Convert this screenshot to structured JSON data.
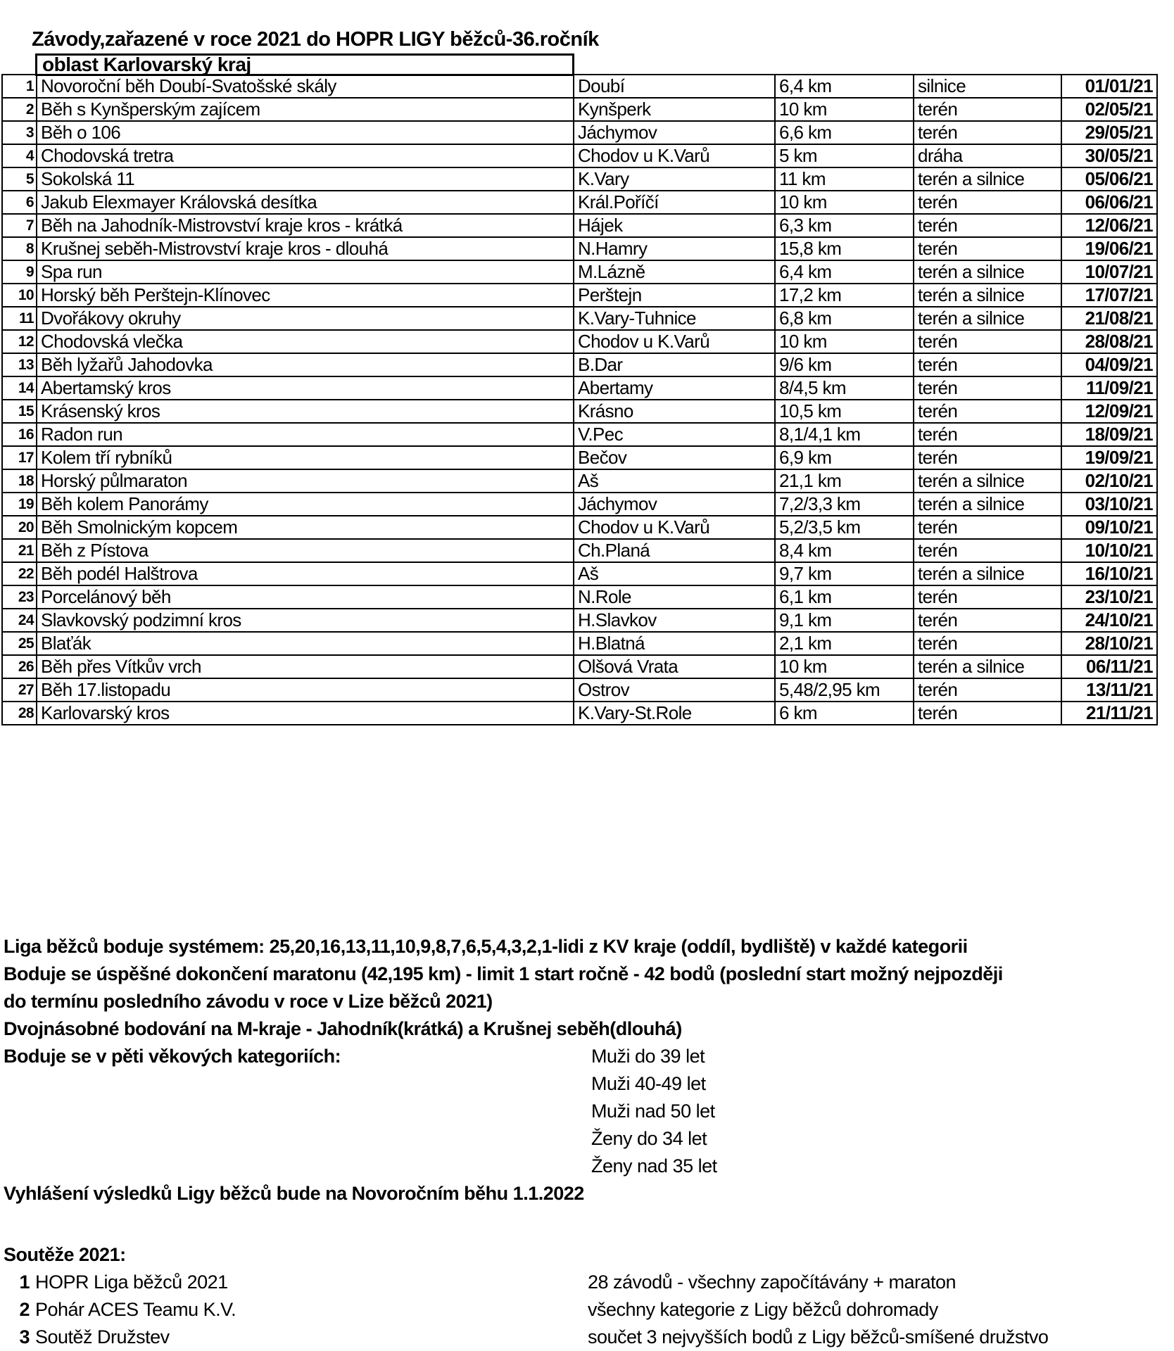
{
  "page": {
    "title": "Závody,zařazené v roce 2021 do HOPR LIGY běžců-36.ročník",
    "region_label": "oblast Karlovarský kraj"
  },
  "colors": {
    "text": "#000000",
    "background": "#ffffff",
    "border": "#000000"
  },
  "table": {
    "rows": [
      {
        "num": "1",
        "name": "Novoroční běh Doubí-Svatošské skály",
        "place": "Doubí",
        "distance": "6,4 km",
        "surface": "silnice",
        "date": "01/01/21"
      },
      {
        "num": "2",
        "name": "Běh s Kynšperským zajícem",
        "place": "Kynšperk",
        "distance": "10 km",
        "surface": "terén",
        "date": "02/05/21"
      },
      {
        "num": "3",
        "name": "Běh o 106",
        "place": "Jáchymov",
        "distance": "6,6 km",
        "surface": "terén",
        "date": "29/05/21"
      },
      {
        "num": "4",
        "name": "Chodovská tretra",
        "place": "Chodov u K.Varů",
        "distance": "5 km",
        "surface": "dráha",
        "date": "30/05/21"
      },
      {
        "num": "5",
        "name": "Sokolská 11",
        "place": "K.Vary",
        "distance": "11 km",
        "surface": "terén a silnice",
        "date": "05/06/21"
      },
      {
        "num": "6",
        "name": "Jakub Elexmayer Královská desítka",
        "place": "Král.Poříčí",
        "distance": "10 km",
        "surface": "terén",
        "date": "06/06/21"
      },
      {
        "num": "7",
        "name": "Běh na Jahodník-Mistrovství kraje kros - krátká",
        "place": "Hájek",
        "distance": "6,3 km",
        "surface": "terén",
        "date": "12/06/21"
      },
      {
        "num": "8",
        "name": "Krušnej seběh-Mistrovství kraje kros - dlouhá",
        "place": "N.Hamry",
        "distance": "15,8 km",
        "surface": "terén",
        "date": "19/06/21"
      },
      {
        "num": "9",
        "name": "Spa run",
        "place": "M.Lázně",
        "distance": "6,4 km",
        "surface": "terén a silnice",
        "date": "10/07/21"
      },
      {
        "num": "10",
        "name": "Horský běh Perštejn-Klínovec",
        "place": "Perštejn",
        "distance": "17,2 km",
        "surface": "terén a silnice",
        "date": "17/07/21"
      },
      {
        "num": "11",
        "name": "Dvořákovy okruhy",
        "place": "K.Vary-Tuhnice",
        "distance": "6,8 km",
        "surface": "terén a silnice",
        "date": "21/08/21"
      },
      {
        "num": "12",
        "name": "Chodovská vlečka",
        "place": "Chodov u K.Varů",
        "distance": "10 km",
        "surface": "terén",
        "date": "28/08/21"
      },
      {
        "num": "13",
        "name": "Běh lyžařů Jahodovka",
        "place": "B.Dar",
        "distance": "9/6 km",
        "surface": "terén",
        "date": "04/09/21"
      },
      {
        "num": "14",
        "name": "Abertamský kros",
        "place": "Abertamy",
        "distance": "8/4,5 km",
        "surface": "terén",
        "date": "11/09/21"
      },
      {
        "num": "15",
        "name": "Krásenský kros",
        "place": "Krásno",
        "distance": "10,5 km",
        "surface": "terén",
        "date": "12/09/21"
      },
      {
        "num": "16",
        "name": "Radon run",
        "place": "V.Pec",
        "distance": "8,1/4,1 km",
        "surface": "terén",
        "date": "18/09/21"
      },
      {
        "num": "17",
        "name": "Kolem tří rybníků",
        "place": "Bečov",
        "distance": "6,9 km",
        "surface": "terén",
        "date": "19/09/21"
      },
      {
        "num": "18",
        "name": "Horský půlmaraton",
        "place": "Aš",
        "distance": "21,1 km",
        "surface": "terén a silnice",
        "date": "02/10/21"
      },
      {
        "num": "19",
        "name": "Běh kolem Panorámy",
        "place": "Jáchymov",
        "distance": "7,2/3,3 km",
        "surface": "terén a silnice",
        "date": "03/10/21"
      },
      {
        "num": "20",
        "name": "Běh Smolnickým kopcem",
        "place": "Chodov u K.Varů",
        "distance": "5,2/3,5 km",
        "surface": "terén",
        "date": "09/10/21"
      },
      {
        "num": "21",
        "name": "Běh z Pístova",
        "place": "Ch.Planá",
        "distance": "8,4 km",
        "surface": "terén",
        "date": "10/10/21"
      },
      {
        "num": "22",
        "name": "Běh podél Halštrova",
        "place": "Aš",
        "distance": "9,7 km",
        "surface": "terén a silnice",
        "date": "16/10/21"
      },
      {
        "num": "23",
        "name": "Porcelánový běh",
        "place": "N.Role",
        "distance": "6,1 km",
        "surface": "terén",
        "date": "23/10/21"
      },
      {
        "num": "24",
        "name": "Slavkovský podzimní kros",
        "place": "H.Slavkov",
        "distance": "9,1 km",
        "surface": "terén",
        "date": "24/10/21"
      },
      {
        "num": "25",
        "name": "Blaťák",
        "place": "H.Blatná",
        "distance": "2,1 km",
        "surface": "terén",
        "date": "28/10/21"
      },
      {
        "num": "26",
        "name": "Běh přes Vítkův vrch",
        "place": "Olšová Vrata",
        "distance": "10 km",
        "surface": "terén a silnice",
        "date": "06/11/21"
      },
      {
        "num": "27",
        "name": "Běh 17.listopadu",
        "place": "Ostrov",
        "distance": "5,48/2,95 km",
        "surface": "terén",
        "date": "13/11/21"
      },
      {
        "num": "28",
        "name": "Karlovarský kros",
        "place": "K.Vary-St.Role",
        "distance": "6 km",
        "surface": "terén",
        "date": "21/11/21"
      }
    ]
  },
  "notes": {
    "lines": [
      "Liga běžců boduje systémem: 25,20,16,13,11,10,9,8,7,6,5,4,3,2,1-lidi z KV kraje (oddíl, bydliště) v každé kategorii",
      "Boduje se úspěšné dokončení maratonu (42,195 km) - limit 1 start ročně - 42 bodů (poslední start možný nejpozději",
      "do termínu posledního závodu v roce v Lize běžců 2021)",
      "Dvojnásobné bodování na M-kraje - Jahodník(krátká) a Krušnej seběh(dlouhá)"
    ],
    "categories_label": "Boduje se v pěti věkových kategoriích:",
    "categories": [
      "Muži do 39 let",
      "Muži 40-49 let",
      "Muži nad 50 let",
      "Ženy do 34 let",
      "Ženy nad 35 let"
    ],
    "announcement": "Vyhlášení výsledků Ligy běžců bude na Novoročním běhu 1.1.2022"
  },
  "competitions": {
    "title": "Soutěže 2021:",
    "items": [
      {
        "num": "1",
        "name": "HOPR Liga běžců 2021",
        "desc": "28 závodů - všechny započítávány + maraton"
      },
      {
        "num": "2",
        "name": "Pohár ACES Teamu K.V.",
        "desc": "všechny kategorie z Ligy běžců dohromady"
      },
      {
        "num": "3",
        "name": "Soutěž Družstev",
        "desc": "součet 3 nejvyšších bodů z Ligy běžců-smíšené družstvo"
      }
    ]
  }
}
